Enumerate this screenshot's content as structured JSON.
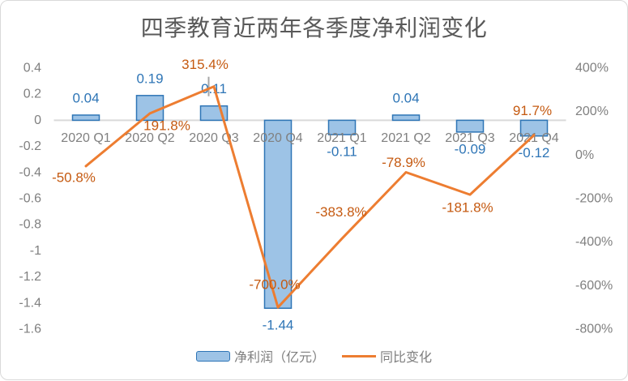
{
  "chart_data": {
    "type": "combo",
    "title": "四季教育近两年各季度净利润变化",
    "categories": [
      "2020 Q1",
      "2020 Q2",
      "2020 Q3",
      "2020 Q4",
      "2021 Q1",
      "2021 Q2",
      "2021 Q3",
      "2021 Q4"
    ],
    "series": [
      {
        "name": "净利润（亿元）",
        "type": "bar",
        "axis": "left",
        "values": [
          0.04,
          0.19,
          0.11,
          -1.44,
          -0.11,
          0.04,
          -0.09,
          -0.12
        ],
        "labels": [
          "0.04",
          "0.19",
          "0.11",
          "-1.44",
          "-0.11",
          "0.04",
          "-0.09",
          "-0.12"
        ]
      },
      {
        "name": "同比变化",
        "type": "line",
        "axis": "right",
        "values": [
          -50.8,
          191.8,
          315.4,
          -700.0,
          -383.8,
          -78.9,
          -181.8,
          91.7
        ],
        "labels": [
          "-50.8%",
          "191.8%",
          "315.4%",
          "-700.0%",
          "-383.8%",
          "-78.9%",
          "-181.8%",
          "91.7%"
        ]
      }
    ],
    "left_axis": {
      "max": 0.4,
      "min": -1.6,
      "step": 0.2,
      "ticks": [
        "0.4",
        "0.2",
        "0",
        "-0.2",
        "-0.4",
        "-0.6",
        "-0.8",
        "-1",
        "-1.2",
        "-1.4",
        "-1.6"
      ]
    },
    "right_axis": {
      "max": 400,
      "min": -800,
      "step": 200,
      "ticks": [
        "400%",
        "200%",
        "0%",
        "-200%",
        "-400%",
        "-600%",
        "-800%"
      ]
    },
    "legend_position": "bottom",
    "gridlines": false,
    "colors": {
      "bar_fill": "#9DC3E6",
      "bar_border": "#2E75B6",
      "bar_label": "#2E75B6",
      "line": "#ED7D31",
      "line_label": "#C55A11",
      "axis_text": "#808080",
      "zero_line": "#D9D9D9",
      "peak_tick": "#A6A6A6",
      "title_text": "#595959",
      "frame_border": "#D9D9D9"
    }
  }
}
